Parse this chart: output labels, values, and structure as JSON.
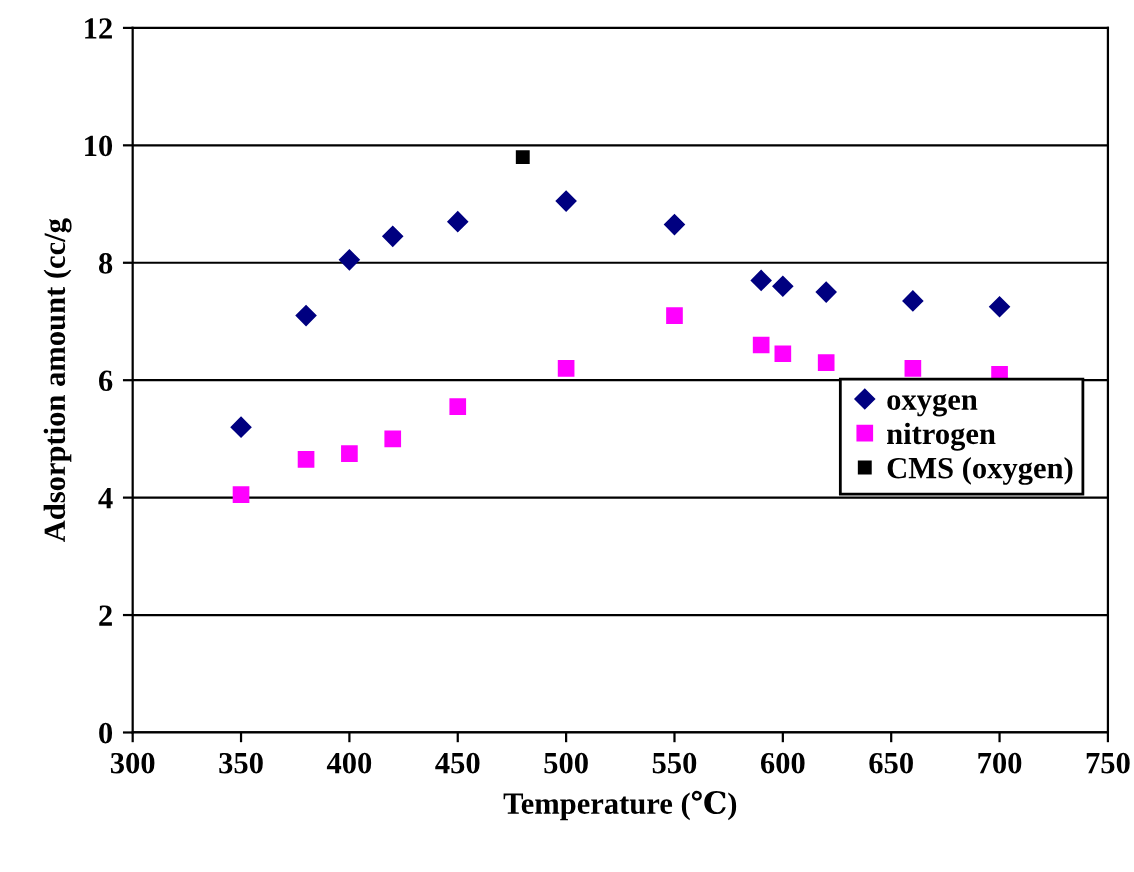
{
  "chart_data": {
    "type": "scatter",
    "xlabel": "Temperature (℃)",
    "ylabel": "Adsorption amount (cc/g",
    "xlim": [
      300,
      750
    ],
    "xticks": [
      300,
      350,
      400,
      450,
      500,
      550,
      600,
      650,
      700,
      750
    ],
    "ylim": [
      0,
      12
    ],
    "yticks": [
      0,
      2,
      4,
      6,
      8,
      10,
      12
    ],
    "grid": "y",
    "legend": "right",
    "series": [
      {
        "name": "oxygen",
        "color": "#000080",
        "marker": "diamond",
        "x": [
          350,
          380,
          400,
          420,
          450,
          500,
          550,
          590,
          600,
          620,
          660,
          700
        ],
        "values": [
          5.2,
          7.1,
          8.05,
          8.45,
          8.7,
          9.05,
          8.65,
          7.7,
          7.6,
          7.5,
          7.35,
          7.25
        ]
      },
      {
        "name": "nitrogen",
        "color": "#ff00ff",
        "marker": "square",
        "x": [
          350,
          380,
          400,
          420,
          450,
          500,
          550,
          590,
          600,
          620,
          660,
          700
        ],
        "values": [
          4.05,
          4.65,
          4.75,
          5.0,
          5.55,
          6.2,
          7.1,
          6.6,
          6.45,
          6.3,
          6.2,
          6.1
        ]
      },
      {
        "name": "CMS (oxygen)",
        "color": "#000000",
        "marker": "square",
        "x": [
          480
        ],
        "values": [
          9.8
        ]
      }
    ]
  }
}
